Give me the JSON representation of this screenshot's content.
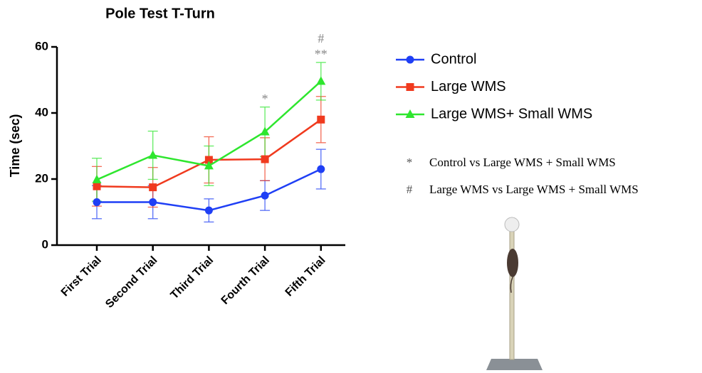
{
  "chart_data": {
    "type": "line",
    "title": "Pole Test T-Turn",
    "y_label": "Time (sec)",
    "categories": [
      "First Trial",
      "Second Trial",
      "Third Trial",
      "Fourth Trial",
      "Fifth Trial"
    ],
    "series": [
      {
        "name": "Control",
        "color": "#1f3ff5",
        "marker": "circle",
        "values": [
          13,
          13,
          10.5,
          15,
          23
        ],
        "errors": [
          5,
          5,
          3.5,
          4.5,
          6
        ]
      },
      {
        "name": "Large WMS",
        "color": "#f03a1e",
        "marker": "square",
        "values": [
          17.8,
          17.5,
          25.8,
          26,
          38
        ],
        "errors": [
          6,
          6,
          7,
          6.5,
          7
        ]
      },
      {
        "name": "Large WMS+ Small WMS",
        "color": "#2ee62e",
        "marker": "triangle",
        "values": [
          19.8,
          27.2,
          24,
          34.3,
          49.6
        ],
        "errors": [
          6.5,
          7.3,
          6,
          7.5,
          5.7
        ]
      }
    ],
    "ylim": [
      0,
      60
    ],
    "yticks": [
      0,
      20,
      40,
      60
    ],
    "annotations": [
      {
        "text": "*",
        "category": "Fourth Trial"
      },
      {
        "text": "**",
        "category": "Fifth Trial"
      },
      {
        "text": "#",
        "category": "Fifth Trial"
      }
    ],
    "notes": [
      {
        "symbol": "*",
        "text": "Control vs Large WMS + Small WMS"
      },
      {
        "symbol": "#",
        "text": "Large WMS vs Large WMS + Small WMS"
      }
    ]
  }
}
